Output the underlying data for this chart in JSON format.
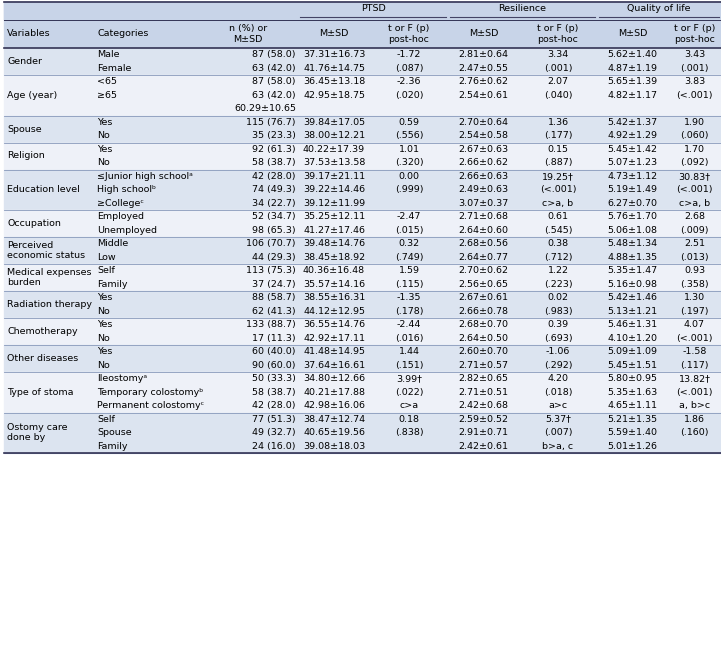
{
  "header_bg": "#c8d4e8",
  "row_bg_odd": "#dce4f0",
  "row_bg_even": "#eef1f8",
  "rows": [
    {
      "var": "Gender",
      "cats": [
        "Male",
        "Female"
      ],
      "n": [
        "87 (58.0)",
        "63 (42.0)"
      ],
      "ptsd_m": [
        "37.31±16.73",
        "41.76±14.75"
      ],
      "ptsd_t": [
        "-1.72",
        "(.087)"
      ],
      "res_m": [
        "2.81±0.64",
        "2.47±0.55"
      ],
      "res_t": [
        "3.34",
        "(.001)"
      ],
      "qol_m": [
        "5.62±1.40",
        "4.87±1.19"
      ],
      "qol_t": [
        "3.43",
        "(.001)"
      ],
      "shaded": true,
      "extra_lines": []
    },
    {
      "var": "Age (year)",
      "cats": [
        "<65",
        "≥65"
      ],
      "n": [
        "87 (58.0)",
        "63 (42.0)"
      ],
      "ptsd_m": [
        "36.45±13.18",
        "42.95±18.75"
      ],
      "ptsd_t": [
        "-2.36",
        "(.020)"
      ],
      "res_m": [
        "2.76±0.62",
        "2.54±0.61"
      ],
      "res_t": [
        "2.07",
        "(.040)"
      ],
      "qol_m": [
        "5.65±1.39",
        "4.82±1.17"
      ],
      "qol_t": [
        "3.83",
        "(<.001)"
      ],
      "shaded": false,
      "extra_lines": [
        "60.29±10.65"
      ]
    },
    {
      "var": "Spouse",
      "cats": [
        "Yes",
        "No"
      ],
      "n": [
        "115 (76.7)",
        "35 (23.3)"
      ],
      "ptsd_m": [
        "39.84±17.05",
        "38.00±12.21"
      ],
      "ptsd_t": [
        "0.59",
        "(.556)"
      ],
      "res_m": [
        "2.70±0.64",
        "2.54±0.58"
      ],
      "res_t": [
        "1.36",
        "(.177)"
      ],
      "qol_m": [
        "5.42±1.37",
        "4.92±1.29"
      ],
      "qol_t": [
        "1.90",
        "(.060)"
      ],
      "shaded": true,
      "extra_lines": []
    },
    {
      "var": "Religion",
      "cats": [
        "Yes",
        "No"
      ],
      "n": [
        "92 (61.3)",
        "58 (38.7)"
      ],
      "ptsd_m": [
        "40.22±17.39",
        "37.53±13.58"
      ],
      "ptsd_t": [
        "1.01",
        "(.320)"
      ],
      "res_m": [
        "2.67±0.63",
        "2.66±0.62"
      ],
      "res_t": [
        "0.15",
        "(.887)"
      ],
      "qol_m": [
        "5.45±1.42",
        "5.07±1.23"
      ],
      "qol_t": [
        "1.70",
        "(.092)"
      ],
      "shaded": false,
      "extra_lines": []
    },
    {
      "var": "Education level",
      "cats": [
        "≤Junior high schoolᵃ",
        "High schoolᵇ",
        "≥Collegeᶜ"
      ],
      "n": [
        "42 (28.0)",
        "74 (49.3)",
        "34 (22.7)"
      ],
      "ptsd_m": [
        "39.17±21.11",
        "39.22±14.46",
        "39.12±11.99"
      ],
      "ptsd_t": [
        "0.00",
        "(.999)",
        ""
      ],
      "res_m": [
        "2.66±0.63",
        "2.49±0.63",
        "3.07±0.37"
      ],
      "res_t": [
        "19.25†",
        "(<.001)",
        "c>a, b"
      ],
      "qol_m": [
        "4.73±1.12",
        "5.19±1.49",
        "6.27±0.70"
      ],
      "qol_t": [
        "30.83†",
        "(<.001)",
        "c>a, b"
      ],
      "shaded": true,
      "extra_lines": []
    },
    {
      "var": "Occupation",
      "cats": [
        "Employed",
        "Unemployed"
      ],
      "n": [
        "52 (34.7)",
        "98 (65.3)"
      ],
      "ptsd_m": [
        "35.25±12.11",
        "41.27±17.46"
      ],
      "ptsd_t": [
        "-2.47",
        "(.015)"
      ],
      "res_m": [
        "2.71±0.68",
        "2.64±0.60"
      ],
      "res_t": [
        "0.61",
        "(.545)"
      ],
      "qol_m": [
        "5.76±1.70",
        "5.06±1.08"
      ],
      "qol_t": [
        "2.68",
        "(.009)"
      ],
      "shaded": false,
      "extra_lines": []
    },
    {
      "var": "Perceived\neconomic status",
      "cats": [
        "Middle",
        "Low"
      ],
      "n": [
        "106 (70.7)",
        "44 (29.3)"
      ],
      "ptsd_m": [
        "39.48±14.76",
        "38.45±18.92"
      ],
      "ptsd_t": [
        "0.32",
        "(.749)"
      ],
      "res_m": [
        "2.68±0.56",
        "2.64±0.77"
      ],
      "res_t": [
        "0.38",
        "(.712)"
      ],
      "qol_m": [
        "5.48±1.34",
        "4.88±1.35"
      ],
      "qol_t": [
        "2.51",
        "(.013)"
      ],
      "shaded": true,
      "extra_lines": []
    },
    {
      "var": "Medical expenses\nburden",
      "cats": [
        "Self",
        "Family"
      ],
      "n": [
        "113 (75.3)",
        "37 (24.7)"
      ],
      "ptsd_m": [
        "40.36±16.48",
        "35.57±14.16"
      ],
      "ptsd_t": [
        "1.59",
        "(.115)"
      ],
      "res_m": [
        "2.70±0.62",
        "2.56±0.65"
      ],
      "res_t": [
        "1.22",
        "(.223)"
      ],
      "qol_m": [
        "5.35±1.47",
        "5.16±0.98"
      ],
      "qol_t": [
        "0.93",
        "(.358)"
      ],
      "shaded": false,
      "extra_lines": []
    },
    {
      "var": "Radiation therapy",
      "cats": [
        "Yes",
        "No"
      ],
      "n": [
        "88 (58.7)",
        "62 (41.3)"
      ],
      "ptsd_m": [
        "38.55±16.31",
        "44.12±12.95"
      ],
      "ptsd_t": [
        "-1.35",
        "(.178)"
      ],
      "res_m": [
        "2.67±0.61",
        "2.66±0.78"
      ],
      "res_t": [
        "0.02",
        "(.983)"
      ],
      "qol_m": [
        "5.42±1.46",
        "5.13±1.21"
      ],
      "qol_t": [
        "1.30",
        "(.197)"
      ],
      "shaded": true,
      "extra_lines": []
    },
    {
      "var": "Chemotherapy",
      "cats": [
        "Yes",
        "No"
      ],
      "n": [
        "133 (88.7)",
        "17 (11.3)"
      ],
      "ptsd_m": [
        "36.55±14.76",
        "42.92±17.11"
      ],
      "ptsd_t": [
        "-2.44",
        "(.016)"
      ],
      "res_m": [
        "2.68±0.70",
        "2.64±0.50"
      ],
      "res_t": [
        "0.39",
        "(.693)"
      ],
      "qol_m": [
        "5.46±1.31",
        "4.10±1.20"
      ],
      "qol_t": [
        "4.07",
        "(<.001)"
      ],
      "shaded": false,
      "extra_lines": []
    },
    {
      "var": "Other diseases",
      "cats": [
        "Yes",
        "No"
      ],
      "n": [
        "60 (40.0)",
        "90 (60.0)"
      ],
      "ptsd_m": [
        "41.48±14.95",
        "37.64±16.61"
      ],
      "ptsd_t": [
        "1.44",
        "(.151)"
      ],
      "res_m": [
        "2.60±0.70",
        "2.71±0.57"
      ],
      "res_t": [
        "-1.06",
        "(.292)"
      ],
      "qol_m": [
        "5.09±1.09",
        "5.45±1.51"
      ],
      "qol_t": [
        "-1.58",
        "(.117)"
      ],
      "shaded": true,
      "extra_lines": []
    },
    {
      "var": "Type of stoma",
      "cats": [
        "Ileostomyᵃ",
        "Temporary colostomyᵇ",
        "Permanent colostomyᶜ"
      ],
      "n": [
        "50 (33.3)",
        "58 (38.7)",
        "42 (28.0)"
      ],
      "ptsd_m": [
        "34.80±12.66",
        "40.21±17.88",
        "42.98±16.06"
      ],
      "ptsd_t": [
        "3.99†",
        "(.022)",
        "c>a"
      ],
      "res_m": [
        "2.82±0.65",
        "2.71±0.51",
        "2.42±0.68"
      ],
      "res_t": [
        "4.20",
        "(.018)",
        "a>c"
      ],
      "qol_m": [
        "5.80±0.95",
        "5.35±1.63",
        "4.65±1.11"
      ],
      "qol_t": [
        "13.82†",
        "(<.001)",
        "a, b>c"
      ],
      "shaded": false,
      "extra_lines": []
    },
    {
      "var": "Ostomy care\ndone by",
      "cats": [
        "Self",
        "Spouse",
        "Family"
      ],
      "n": [
        "77 (51.3)",
        "49 (32.7)",
        "24 (16.0)"
      ],
      "ptsd_m": [
        "38.47±12.74",
        "40.65±19.56",
        "39.08±18.03"
      ],
      "ptsd_t": [
        "0.18",
        "(.838)",
        ""
      ],
      "res_m": [
        "2.59±0.52",
        "2.91±0.71",
        "2.42±0.61"
      ],
      "res_t": [
        "5.37†",
        "(.007)",
        "b>a, c"
      ],
      "qol_m": [
        "5.21±1.35",
        "5.59±1.40",
        "5.01±1.26"
      ],
      "qol_t": [
        "1.86",
        "(.160)",
        ""
      ],
      "shaded": true,
      "extra_lines": []
    }
  ]
}
